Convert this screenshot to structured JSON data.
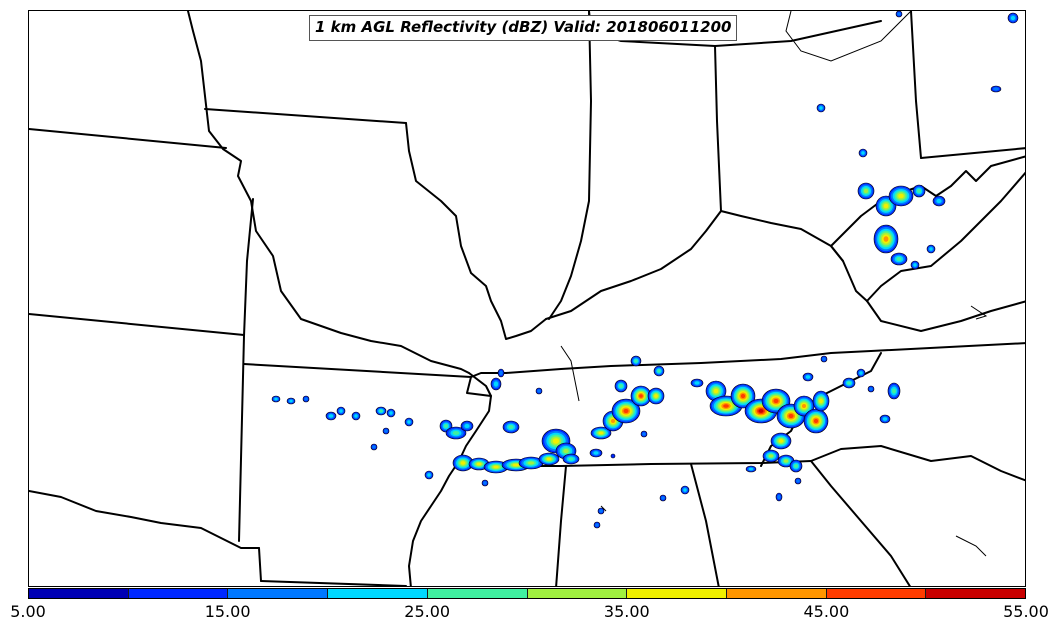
{
  "title": "1 km AGL Reflectivity (dBZ) Valid: 201806011200",
  "map": {
    "projection": "Lambert conformal",
    "region": "Central / Eastern United States (Missouri, Illinois, Kentucky, Tennessee, Ohio Valley)",
    "colors": {
      "state_lines": "#000000",
      "background": "#ffffff"
    }
  },
  "colorbar": {
    "min": 5,
    "max": 55,
    "interval": 5,
    "tick_labels": [
      "5.00",
      "15.00",
      "25.00",
      "35.00",
      "45.00",
      "55.00"
    ],
    "colors": [
      "#0000b4",
      "#0028ff",
      "#0078ff",
      "#00d8ff",
      "#40f0a0",
      "#a0f040",
      "#f0f000",
      "#ff9600",
      "#ff3c00",
      "#c80000"
    ]
  }
}
